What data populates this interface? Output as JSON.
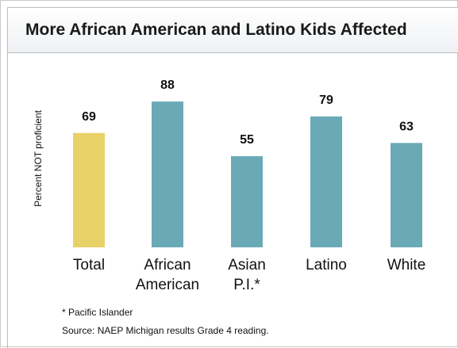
{
  "chart_data": {
    "type": "bar",
    "title": "More African American and Latino Kids Affected",
    "ylabel": "Percent NOT proficient",
    "xlabel": "",
    "categories": [
      [
        "Total"
      ],
      [
        "African",
        "American"
      ],
      [
        "Asian",
        "P.I.*"
      ],
      [
        "Latino"
      ],
      [
        "White"
      ]
    ],
    "values": [
      69,
      88,
      55,
      79,
      63
    ],
    "colors": [
      "#e8d268",
      "#6aaab6",
      "#6aaab6",
      "#6aaab6",
      "#6aaab6"
    ],
    "data_labels": [
      "69",
      "88",
      "55",
      "79",
      "63"
    ],
    "ylim": [
      0,
      100
    ],
    "grid": false,
    "legend": "none"
  },
  "footnotes": {
    "note": "* Pacific Islander",
    "source": "Source: NAEP Michigan results Grade 4 reading."
  }
}
